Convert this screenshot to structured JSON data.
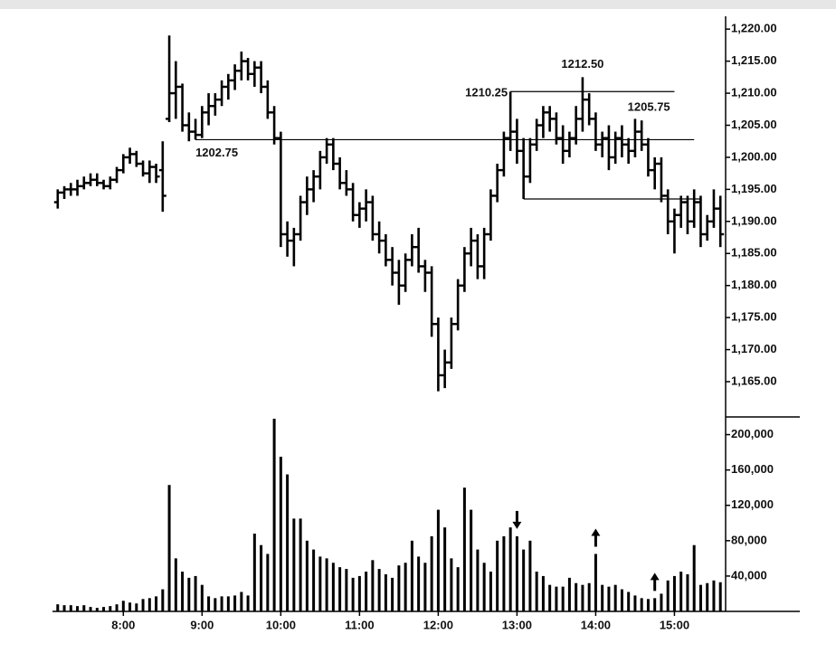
{
  "chart_data": {
    "type": "ohlc",
    "color": "#000000",
    "x": [
      "7:10",
      "7:15",
      "7:20",
      "7:25",
      "7:30",
      "7:35",
      "7:40",
      "7:45",
      "7:50",
      "7:55",
      "8:00",
      "8:05",
      "8:10",
      "8:15",
      "8:20",
      "8:25",
      "8:30",
      "8:35",
      "8:40",
      "8:45",
      "8:50",
      "8:55",
      "9:00",
      "9:05",
      "9:10",
      "9:15",
      "9:20",
      "9:25",
      "9:30",
      "9:35",
      "9:40",
      "9:45",
      "9:50",
      "9:55",
      "10:00",
      "10:05",
      "10:10",
      "10:15",
      "10:20",
      "10:25",
      "10:30",
      "10:35",
      "10:40",
      "10:45",
      "10:50",
      "10:55",
      "11:00",
      "11:05",
      "11:10",
      "11:15",
      "11:20",
      "11:25",
      "11:30",
      "11:35",
      "11:40",
      "11:45",
      "11:50",
      "11:55",
      "12:00",
      "12:05",
      "12:10",
      "12:15",
      "12:20",
      "12:25",
      "12:30",
      "12:35",
      "12:40",
      "12:45",
      "12:50",
      "12:55",
      "13:00",
      "13:05",
      "13:10",
      "13:15",
      "13:20",
      "13:25",
      "13:30",
      "13:35",
      "13:40",
      "13:45",
      "13:50",
      "13:55",
      "14:00",
      "14:05",
      "14:10",
      "14:15",
      "14:20",
      "14:25",
      "14:30",
      "14:35",
      "14:40",
      "14:45",
      "14:50",
      "14:55",
      "15:00",
      "15:05",
      "15:10",
      "15:15",
      "15:20",
      "15:25",
      "15:30",
      "15:35"
    ],
    "ohlc": [
      [
        1193,
        1195,
        1192,
        1194.5
      ],
      [
        1194.5,
        1195.5,
        1193.5,
        1195
      ],
      [
        1195,
        1196,
        1194,
        1195
      ],
      [
        1195,
        1196.5,
        1194,
        1195.5
      ],
      [
        1195.5,
        1197,
        1195,
        1196
      ],
      [
        1196,
        1197.5,
        1195.5,
        1196.5
      ],
      [
        1196.5,
        1197.5,
        1195.5,
        1196
      ],
      [
        1196,
        1196.5,
        1195,
        1195.5
      ],
      [
        1195.5,
        1197,
        1195,
        1196.5
      ],
      [
        1196.5,
        1198.5,
        1196,
        1198
      ],
      [
        1198,
        1200.5,
        1197.5,
        1200
      ],
      [
        1200,
        1201.5,
        1199,
        1200.5
      ],
      [
        1200.5,
        1201,
        1198.5,
        1199
      ],
      [
        1199,
        1199.5,
        1197,
        1197.5
      ],
      [
        1197.5,
        1199.5,
        1196,
        1198.5
      ],
      [
        1198.5,
        1199,
        1196,
        1197
      ],
      [
        1198,
        1202.5,
        1191.5,
        1194
      ],
      [
        1206,
        1219,
        1205.5,
        1210
      ],
      [
        1210,
        1215,
        1206,
        1211
      ],
      [
        1211,
        1211.5,
        1204,
        1205
      ],
      [
        1205,
        1207,
        1202.5,
        1204
      ],
      [
        1204,
        1206,
        1202.75,
        1203.5
      ],
      [
        1203.5,
        1208,
        1203,
        1207
      ],
      [
        1207,
        1210,
        1205,
        1208
      ],
      [
        1208,
        1210,
        1206.5,
        1209
      ],
      [
        1209,
        1212,
        1208,
        1211
      ],
      [
        1211,
        1213,
        1209,
        1212
      ],
      [
        1212,
        1214.5,
        1210.5,
        1213.5
      ],
      [
        1213.5,
        1216.5,
        1212,
        1215
      ],
      [
        1215,
        1215.5,
        1212,
        1213
      ],
      [
        1213,
        1215,
        1211,
        1214
      ],
      [
        1214,
        1215,
        1210,
        1211
      ],
      [
        1211,
        1212,
        1206,
        1207
      ],
      [
        1207,
        1208,
        1202,
        1203
      ],
      [
        1203,
        1204,
        1186,
        1188
      ],
      [
        1188,
        1190,
        1184.5,
        1187
      ],
      [
        1187,
        1189,
        1183,
        1188
      ],
      [
        1188,
        1194,
        1187,
        1193
      ],
      [
        1193,
        1197,
        1191,
        1195
      ],
      [
        1195,
        1198,
        1193,
        1197
      ],
      [
        1197,
        1201,
        1195,
        1200
      ],
      [
        1200,
        1203,
        1199,
        1202
      ],
      [
        1202,
        1203,
        1198,
        1199
      ],
      [
        1199,
        1200,
        1195,
        1196
      ],
      [
        1196,
        1198,
        1194,
        1195
      ],
      [
        1195,
        1196,
        1190,
        1191
      ],
      [
        1191,
        1193,
        1189,
        1192
      ],
      [
        1192,
        1195,
        1190,
        1193
      ],
      [
        1193,
        1194,
        1187,
        1188
      ],
      [
        1188,
        1190,
        1185,
        1187
      ],
      [
        1187,
        1188,
        1183,
        1184
      ],
      [
        1184,
        1186,
        1180,
        1182
      ],
      [
        1182,
        1184,
        1177,
        1180
      ],
      [
        1180,
        1185,
        1179,
        1184
      ],
      [
        1184,
        1188,
        1183,
        1186
      ],
      [
        1186,
        1189,
        1182,
        1183
      ],
      [
        1183,
        1184,
        1179,
        1182
      ],
      [
        1182,
        1183,
        1172,
        1174
      ],
      [
        1174,
        1175,
        1163.5,
        1166
      ],
      [
        1166,
        1170,
        1164,
        1168
      ],
      [
        1168,
        1175,
        1167,
        1174
      ],
      [
        1174,
        1181,
        1173,
        1180
      ],
      [
        1180,
        1186,
        1179,
        1185
      ],
      [
        1185,
        1189,
        1183,
        1187
      ],
      [
        1187,
        1188,
        1181,
        1183
      ],
      [
        1183,
        1189,
        1181,
        1188
      ],
      [
        1188,
        1195,
        1187,
        1194
      ],
      [
        1194,
        1199,
        1193,
        1198
      ],
      [
        1198,
        1204,
        1197,
        1203
      ],
      [
        1203,
        1210.25,
        1201,
        1204
      ],
      [
        1204,
        1206,
        1199,
        1201
      ],
      [
        1201,
        1203,
        1193.5,
        1197
      ],
      [
        1197,
        1203,
        1196,
        1202
      ],
      [
        1202,
        1206,
        1201,
        1205
      ],
      [
        1205,
        1208,
        1203,
        1207
      ],
      [
        1207,
        1208,
        1204,
        1206
      ],
      [
        1206,
        1207,
        1202,
        1203
      ],
      [
        1203,
        1205,
        1199,
        1201
      ],
      [
        1201,
        1204,
        1200,
        1203
      ],
      [
        1203,
        1208,
        1202,
        1206
      ],
      [
        1206,
        1212.5,
        1204,
        1209
      ],
      [
        1209,
        1210,
        1205,
        1206
      ],
      [
        1206,
        1207,
        1201,
        1202
      ],
      [
        1202,
        1204,
        1200,
        1203
      ],
      [
        1203,
        1205,
        1198,
        1200
      ],
      [
        1200,
        1204,
        1199,
        1203
      ],
      [
        1203,
        1205,
        1200,
        1202
      ],
      [
        1202,
        1203,
        1199,
        1201
      ],
      [
        1201,
        1206,
        1200,
        1204
      ],
      [
        1204,
        1205.75,
        1201,
        1202
      ],
      [
        1202,
        1203,
        1197,
        1198
      ],
      [
        1198,
        1200,
        1195,
        1199
      ],
      [
        1199,
        1200,
        1193,
        1194
      ],
      [
        1194,
        1195,
        1188,
        1190
      ],
      [
        1190,
        1192,
        1185,
        1191
      ],
      [
        1191,
        1194,
        1189,
        1193
      ],
      [
        1193,
        1194,
        1188,
        1190
      ],
      [
        1190,
        1195,
        1189,
        1193
      ],
      [
        1193,
        1194,
        1186,
        1188
      ],
      [
        1188,
        1191,
        1187,
        1190
      ],
      [
        1190,
        1195,
        1189,
        1192
      ],
      [
        1192,
        1194,
        1186,
        1188
      ]
    ],
    "volume": [
      8000,
      7000,
      7000,
      6000,
      7000,
      5000,
      4000,
      5000,
      6000,
      8000,
      12000,
      10000,
      9000,
      14000,
      15000,
      17000,
      25000,
      143000,
      60000,
      45000,
      38000,
      40000,
      30000,
      17000,
      15000,
      17000,
      17000,
      18000,
      22000,
      18000,
      88000,
      75000,
      65000,
      218000,
      175000,
      155000,
      105000,
      105000,
      80000,
      70000,
      62000,
      60000,
      55000,
      50000,
      48000,
      38000,
      40000,
      45000,
      58000,
      48000,
      42000,
      38000,
      52000,
      55000,
      80000,
      62000,
      55000,
      85000,
      115000,
      95000,
      60000,
      50000,
      140000,
      115000,
      70000,
      55000,
      45000,
      80000,
      85000,
      95000,
      85000,
      70000,
      80000,
      45000,
      40000,
      30000,
      28000,
      28000,
      38000,
      32000,
      30000,
      32000,
      65000,
      30000,
      28000,
      30000,
      25000,
      22000,
      18000,
      15000,
      14000,
      15000,
      20000,
      35000,
      40000,
      45000,
      42000,
      75000,
      30000,
      32000,
      35000,
      33000
    ],
    "xlim": [
      "7:06",
      "15:39"
    ],
    "xticks": [
      "8:00",
      "9:00",
      "10:00",
      "11:00",
      "12:00",
      "13:00",
      "14:00",
      "15:00"
    ],
    "ylim": [
      1159.5,
      1222
    ],
    "yticks": [
      {
        "value": 1165,
        "label": "1,165.00"
      },
      {
        "value": 1170,
        "label": "1,170.00"
      },
      {
        "value": 1175,
        "label": "1,175.00"
      },
      {
        "value": 1180,
        "label": "1,180.00"
      },
      {
        "value": 1185,
        "label": "1,185.00"
      },
      {
        "value": 1190,
        "label": "1,190.00"
      },
      {
        "value": 1195,
        "label": "1,195.00"
      },
      {
        "value": 1200,
        "label": "1,200.00"
      },
      {
        "value": 1205,
        "label": "1,205.00"
      },
      {
        "value": 1210,
        "label": "1,210.00"
      },
      {
        "value": 1215,
        "label": "1,215.00"
      },
      {
        "value": 1220,
        "label": "1,220.00"
      }
    ],
    "volume_ylim": [
      0,
      220000
    ],
    "volume_yticks": [
      {
        "value": 40000,
        "label": "40,000"
      },
      {
        "value": 80000,
        "label": "80,000"
      },
      {
        "value": 120000,
        "label": "120,000"
      },
      {
        "value": 160000,
        "label": "160,000"
      },
      {
        "value": 200000,
        "label": "200,000"
      }
    ],
    "levels": [
      {
        "value": 1202.75,
        "from": "8:55",
        "to": "15:15",
        "label": "1202.75"
      },
      {
        "value": 1210.25,
        "from": "12:55",
        "to": "15:00",
        "label": "1210.25"
      },
      {
        "value": 1193.5,
        "from": "13:05",
        "to": "15:20"
      }
    ],
    "price_labels": [
      {
        "x": "13:50",
        "value": 1212.5,
        "label": "1212.50"
      },
      {
        "x": "14:35",
        "value": 1205.75,
        "label": "1205.75"
      }
    ],
    "arrows": [
      {
        "x": "13:00",
        "direction": "down"
      },
      {
        "x": "14:00",
        "direction": "up"
      },
      {
        "x": "14:45",
        "direction": "up"
      }
    ]
  }
}
